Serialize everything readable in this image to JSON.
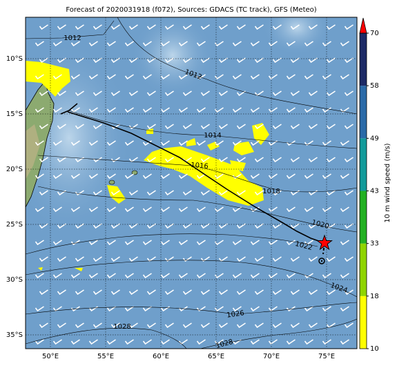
{
  "title": "Forecast of 2020031918 (f072), Sources: GDACS (TC track), GFS (Meteo)",
  "map": {
    "xlim": [
      47.75,
      77.75
    ],
    "ylim": [
      -36.25,
      -6.25
    ],
    "xticks": [
      {
        "value": 50,
        "label": "50°E"
      },
      {
        "value": 55,
        "label": "55°E"
      },
      {
        "value": 60,
        "label": "60°E"
      },
      {
        "value": 65,
        "label": "65°E"
      },
      {
        "value": 70,
        "label": "70°E"
      },
      {
        "value": 75,
        "label": "75°E"
      }
    ],
    "yticks": [
      {
        "value": -10,
        "label": "10°S"
      },
      {
        "value": -15,
        "label": "15°S"
      },
      {
        "value": -20,
        "label": "20°S"
      },
      {
        "value": -25,
        "label": "25°S"
      },
      {
        "value": -30,
        "label": "30°S"
      },
      {
        "value": -35,
        "label": "35°S"
      }
    ],
    "grid": true,
    "isobar_labels": [
      1012,
      1012,
      1014,
      1016,
      1018,
      1020,
      1022,
      1024,
      1026,
      1028,
      1028
    ]
  },
  "colorbar": {
    "label": "10 m wind speed (m/s)",
    "ticks": [
      10,
      18,
      33,
      43,
      49,
      58,
      70
    ],
    "colors": [
      "#ffff00",
      "#8fd400",
      "#22b022",
      "#129a9a",
      "#2a6aa8",
      "#1c2a66"
    ],
    "extend_color": "#ff0000"
  }
}
